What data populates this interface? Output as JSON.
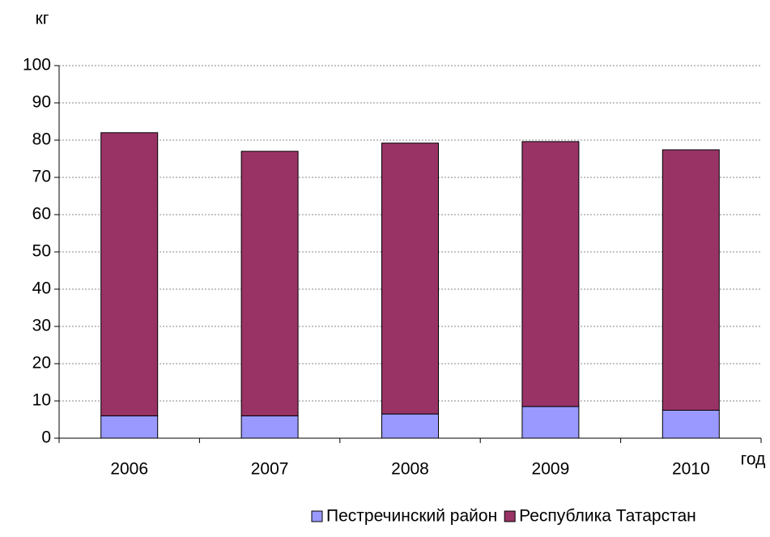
{
  "chart_data": {
    "type": "stacked_bar",
    "y_label": "кг",
    "x_label": "год",
    "categories": [
      "2006",
      "2007",
      "2008",
      "2009",
      "2010"
    ],
    "series": [
      {
        "name": "Пестречинский район",
        "color": "#9999ff",
        "values": [
          6,
          6,
          6.5,
          8.5,
          7.5
        ]
      },
      {
        "name": "Республика Татарстан",
        "color": "#993366",
        "values": [
          76,
          71,
          72.7,
          71.1,
          69.9
        ]
      }
    ],
    "ylim": [
      0,
      100
    ],
    "yticks": [
      0,
      10,
      20,
      30,
      40,
      50,
      60,
      70,
      80,
      90,
      100
    ],
    "grid": true,
    "legend": "bottom"
  }
}
